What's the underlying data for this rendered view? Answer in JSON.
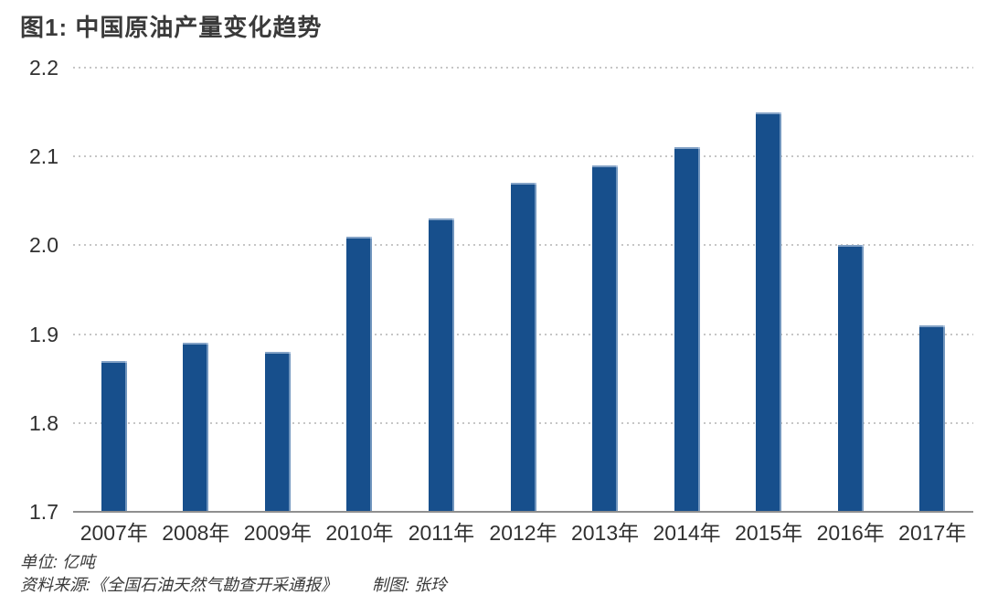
{
  "title": "图1: 中国原油产量变化趋势",
  "chart_data": {
    "type": "bar",
    "title": "图1: 中国原油产量变化趋势",
    "categories": [
      "2007年",
      "2008年",
      "2009年",
      "2010年",
      "2011年",
      "2012年",
      "2013年",
      "2014年",
      "2015年",
      "2016年",
      "2017年"
    ],
    "values": [
      1.87,
      1.89,
      1.88,
      2.01,
      2.03,
      2.07,
      2.09,
      2.11,
      2.15,
      2.0,
      1.91
    ],
    "xlabel": "",
    "ylabel": "",
    "unit_label": "单位: 亿吨",
    "ylim": [
      1.7,
      2.2
    ],
    "ytick_labels": [
      "2.2",
      "2.1",
      "2.0",
      "1.9",
      "1.8",
      "1.7"
    ],
    "grid": "horizontal-dotted",
    "legend": "none",
    "bar_color": "#174f8c"
  },
  "footer": {
    "unit": "单位: 亿吨",
    "source": "资料来源:《全国石油天然气勘查开采通报》",
    "credit": "制图: 张玲"
  },
  "colors": {
    "bar": "#174f8c",
    "gridline": "#c6c6c6",
    "axis": "#8f8f8f",
    "text": "#303030",
    "title_text": "#3a3a3a",
    "background": "#ffffff"
  }
}
